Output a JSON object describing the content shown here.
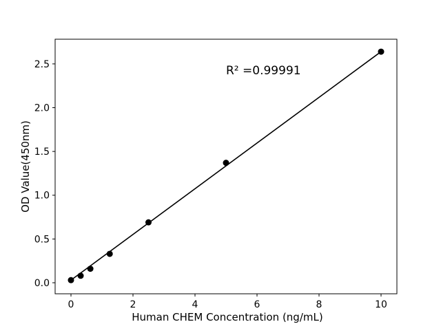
{
  "chart_data": {
    "type": "scatter",
    "title": "",
    "xlabel": "Human CHEM Concentration (ng/mL)",
    "ylabel": "OD Value(450nm)",
    "annotation": "R² =0.99991",
    "r_squared": 0.99991,
    "x": [
      0,
      0.3125,
      0.625,
      1.25,
      2.5,
      5,
      10
    ],
    "y": [
      0.03,
      0.08,
      0.16,
      0.33,
      0.69,
      1.37,
      2.64
    ],
    "fit_line": {
      "x1": 0,
      "y1": 0.03,
      "x2": 10,
      "y2": 2.64
    },
    "x_ticks": {
      "values": [
        0,
        2,
        4,
        6,
        8,
        10
      ],
      "labels": [
        "0",
        "2",
        "4",
        "6",
        "8",
        "10"
      ]
    },
    "y_ticks": {
      "values": [
        0,
        0.5,
        1.0,
        1.5,
        2.0,
        2.5
      ],
      "labels": [
        "0.0",
        "0.5",
        "1.0",
        "1.5",
        "2.0",
        "2.5"
      ]
    },
    "xlim": [
      -0.511,
      10.511
    ],
    "ylim": [
      -0.126,
      2.782
    ],
    "grid": false,
    "legend": null,
    "marker": "circle",
    "colors": {
      "line": "#000000",
      "marker": "#000000",
      "axis": "#000000",
      "text": "#000000",
      "background": "#ffffff"
    }
  }
}
